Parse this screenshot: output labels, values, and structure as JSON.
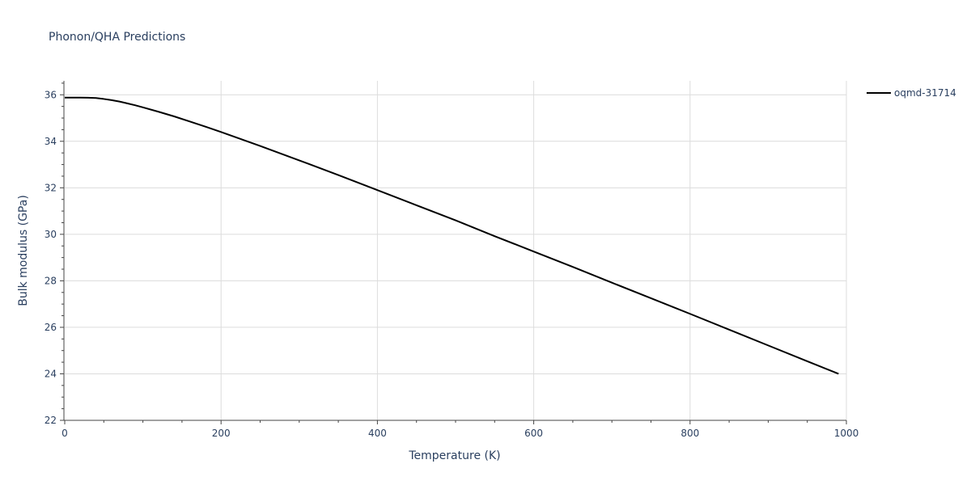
{
  "chart_data": {
    "type": "line",
    "title": "Phonon/QHA Predictions",
    "xlabel": "Temperature (K)",
    "ylabel": "Bulk modulus (GPa)",
    "xlim": [
      0,
      1000
    ],
    "ylim": [
      22,
      36.6
    ],
    "x_ticks": [
      0,
      200,
      400,
      600,
      800,
      1000
    ],
    "y_ticks": [
      22,
      24,
      26,
      28,
      30,
      32,
      34,
      36
    ],
    "grid": true,
    "legend": "top-right",
    "series": [
      {
        "name": "oqmd-31714",
        "color": "#000000",
        "points": [
          [
            0,
            35.88
          ],
          [
            10,
            35.88
          ],
          [
            20,
            35.88
          ],
          [
            30,
            35.875
          ],
          [
            40,
            35.86
          ],
          [
            50,
            35.82
          ],
          [
            60,
            35.77
          ],
          [
            70,
            35.71
          ],
          [
            80,
            35.63
          ],
          [
            90,
            35.55
          ],
          [
            100,
            35.46
          ],
          [
            120,
            35.27
          ],
          [
            140,
            35.07
          ],
          [
            160,
            34.85
          ],
          [
            180,
            34.63
          ],
          [
            200,
            34.4
          ],
          [
            250,
            33.8
          ],
          [
            300,
            33.18
          ],
          [
            350,
            32.55
          ],
          [
            400,
            31.9
          ],
          [
            450,
            31.25
          ],
          [
            500,
            30.6
          ],
          [
            550,
            29.92
          ],
          [
            600,
            29.26
          ],
          [
            650,
            28.6
          ],
          [
            700,
            27.92
          ],
          [
            750,
            27.25
          ],
          [
            800,
            26.58
          ],
          [
            850,
            25.9
          ],
          [
            900,
            25.22
          ],
          [
            950,
            24.54
          ],
          [
            990,
            24.0
          ]
        ]
      }
    ]
  }
}
